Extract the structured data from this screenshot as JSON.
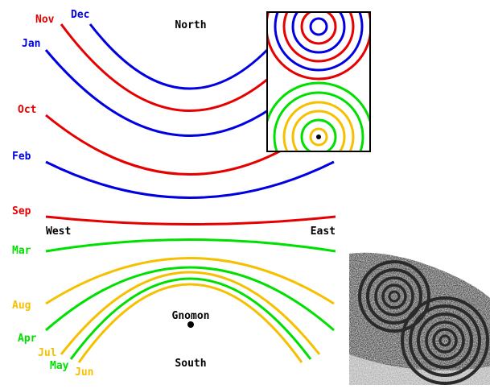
{
  "directions": {
    "north": "North",
    "south": "South",
    "west": "West",
    "east": "East",
    "gnomon": "Gnomon"
  },
  "colors": {
    "red": "#e60000",
    "blue": "#0000e0",
    "green": "#00e000",
    "gold": "#f5c000",
    "black": "#000000"
  },
  "months": [
    {
      "label": "Nov",
      "color": "red"
    },
    {
      "label": "Dec",
      "color": "blue"
    },
    {
      "label": "Jan",
      "color": "blue"
    },
    {
      "label": "Oct",
      "color": "red"
    },
    {
      "label": "Feb",
      "color": "blue"
    },
    {
      "label": "Sep",
      "color": "red"
    },
    {
      "label": "Mar",
      "color": "green"
    },
    {
      "label": "Aug",
      "color": "gold"
    },
    {
      "label": "Apr",
      "color": "green"
    },
    {
      "label": "Jul",
      "color": "gold"
    },
    {
      "label": "May",
      "color": "green"
    },
    {
      "label": "Jun",
      "color": "gold"
    }
  ],
  "inset_description_icon": "concentric-rings-petroglyph"
}
